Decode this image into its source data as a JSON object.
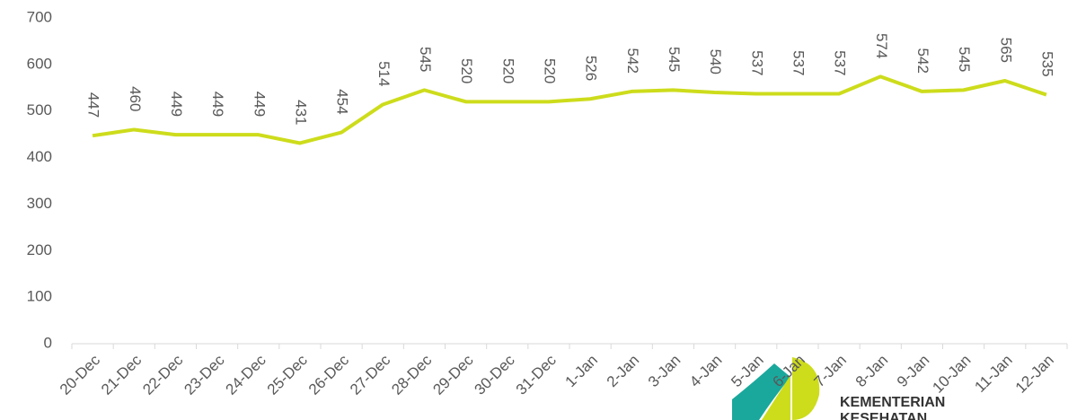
{
  "chart_data": {
    "type": "line",
    "categories": [
      "20-Dec",
      "21-Dec",
      "22-Dec",
      "23-Dec",
      "24-Dec",
      "25-Dec",
      "26-Dec",
      "27-Dec",
      "28-Dec",
      "29-Dec",
      "30-Dec",
      "31-Dec",
      "1-Jan",
      "2-Jan",
      "3-Jan",
      "4-Jan",
      "5-Jan",
      "6-Jan",
      "7-Jan",
      "8-Jan",
      "9-Jan",
      "10-Jan",
      "11-Jan",
      "12-Jan"
    ],
    "values": [
      447,
      460,
      449,
      449,
      449,
      431,
      454,
      514,
      545,
      520,
      520,
      520,
      526,
      542,
      545,
      540,
      537,
      537,
      537,
      574,
      542,
      545,
      565,
      535
    ],
    "color": "#cddc1b",
    "ylim": [
      0,
      700
    ],
    "yticks": [
      0,
      100,
      200,
      300,
      400,
      500,
      600,
      700
    ],
    "grid": false,
    "annotations": [
      "KEMENTERIAN",
      "KESEHATAN"
    ]
  }
}
